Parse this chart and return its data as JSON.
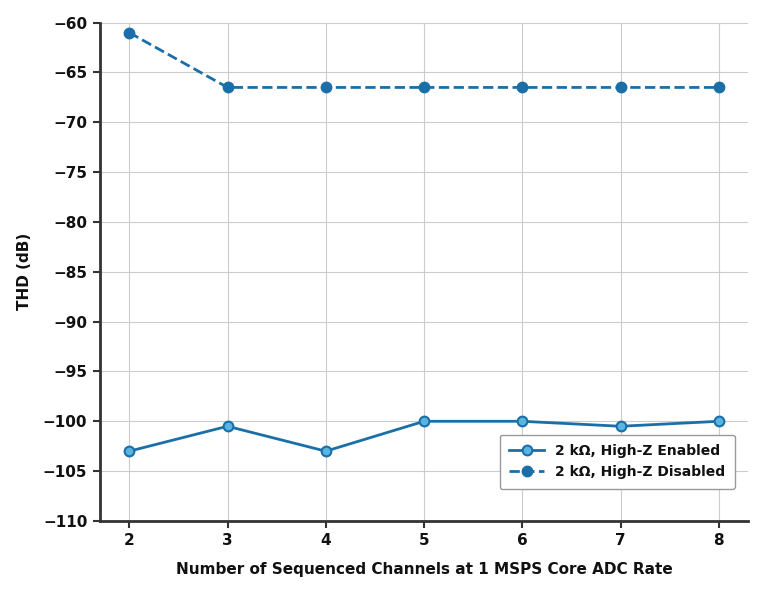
{
  "x": [
    2,
    3,
    4,
    5,
    6,
    7,
    8
  ],
  "highz_enabled_y": [
    -103,
    -100.5,
    -103,
    -100,
    -100,
    -100.5,
    -100
  ],
  "highz_disabled_y": [
    -61,
    -66.5,
    -66.5,
    -66.5,
    -66.5,
    -66.5,
    -66.5
  ],
  "line_color": "#1a6fa8",
  "marker_face_color": "#5ab4e0",
  "xlabel": "Number of Sequenced Channels at 1 MSPS Core ADC Rate",
  "ylabel": "THD (dB)",
  "ylim": [
    -110,
    -60
  ],
  "xlim": [
    1.7,
    8.3
  ],
  "yticks": [
    -60,
    -65,
    -70,
    -75,
    -80,
    -85,
    -90,
    -95,
    -100,
    -105,
    -110
  ],
  "xticks": [
    2,
    3,
    4,
    5,
    6,
    7,
    8
  ],
  "legend_enabled": "2 kΩ, High-Z Enabled",
  "legend_disabled": "2 kΩ, High-Z Disabled",
  "bg_color": "#ffffff",
  "grid_color": "#cccccc",
  "marker_size": 7,
  "linewidth": 2.0
}
